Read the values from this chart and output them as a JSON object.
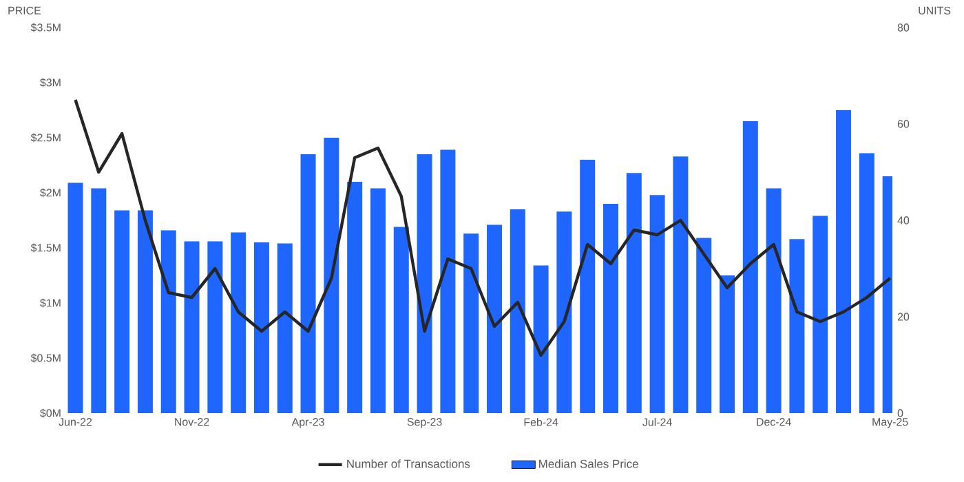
{
  "chart_data": {
    "type": "bar",
    "ylabel": "PRICE",
    "y2label": "UNITS",
    "categories": [
      "Jun-22",
      null,
      null,
      null,
      null,
      "Nov-22",
      null,
      null,
      null,
      null,
      "Apr-23",
      null,
      null,
      null,
      null,
      "Sep-23",
      null,
      null,
      null,
      null,
      "Feb-24",
      null,
      null,
      null,
      null,
      "Jul-24",
      null,
      null,
      null,
      null,
      "Dec-24",
      null,
      null,
      null,
      null,
      "May-25"
    ],
    "series": [
      {
        "name": "Number of Transactions",
        "type": "line",
        "axis": "y2",
        "color": "#262626",
        "values": [
          65,
          50,
          58,
          40,
          25,
          24,
          30,
          21,
          17,
          21,
          17,
          28,
          53,
          55,
          45,
          17,
          32,
          30,
          18,
          23,
          12,
          19,
          35,
          31,
          38,
          37,
          40,
          33,
          26,
          31,
          35,
          21,
          19,
          21,
          24,
          28
        ]
      },
      {
        "name": "Median Sales Price",
        "color": "#1f66ff",
        "values": [
          2.09,
          2.04,
          1.84,
          1.84,
          1.66,
          1.56,
          1.56,
          1.64,
          1.55,
          1.54,
          2.35,
          2.5,
          2.1,
          2.04,
          1.69,
          2.35,
          2.39,
          1.63,
          1.71,
          1.85,
          1.34,
          1.83,
          2.3,
          1.9,
          2.18,
          1.98,
          2.33,
          1.59,
          1.25,
          2.65,
          2.04,
          1.58,
          1.79,
          2.75,
          2.36,
          2.15
        ]
      }
    ],
    "ylim": [
      0,
      3.5
    ],
    "yticks": [
      {
        "value": 0,
        "label": "$0M"
      },
      {
        "value": 0.5,
        "label": "$0.5M"
      },
      {
        "value": 1,
        "label": "$1M"
      },
      {
        "value": 1.5,
        "label": "$1.5M"
      },
      {
        "value": 2,
        "label": "$2M"
      },
      {
        "value": 2.5,
        "label": "$2.5M"
      },
      {
        "value": 3,
        "label": "$3M"
      },
      {
        "value": 3.5,
        "label": "$3.5M"
      }
    ],
    "y2lim": [
      0,
      80
    ],
    "y2ticks": [
      0,
      20,
      40,
      60,
      80
    ],
    "legend": "bottom",
    "grid": false,
    "marker": "none",
    "line_style": "solid"
  }
}
